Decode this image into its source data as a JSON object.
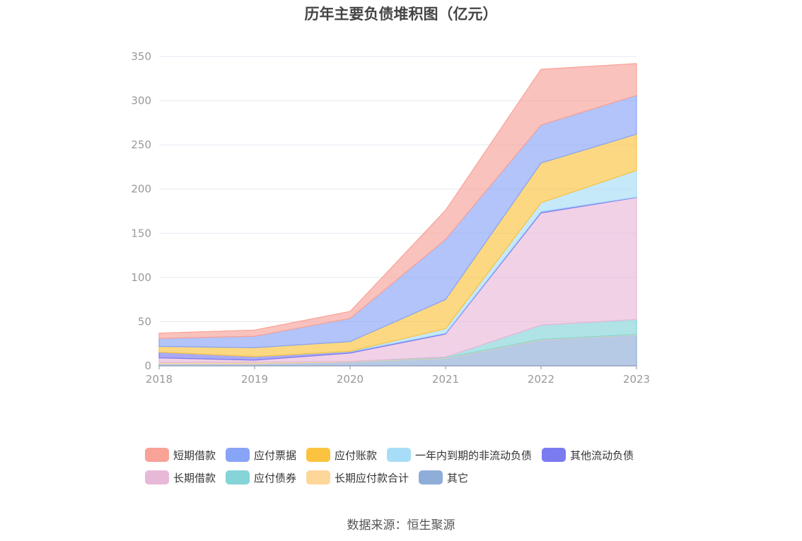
{
  "title": "历年主要负债堆积图（亿元）",
  "source": "数据来源：恒生聚源",
  "chart_data": {
    "type": "area",
    "stacked": true,
    "x": [
      "2018",
      "2019",
      "2020",
      "2021",
      "2022",
      "2023"
    ],
    "ylim": [
      0,
      350
    ],
    "yticks": [
      0,
      50,
      100,
      150,
      200,
      250,
      300,
      350
    ],
    "grid": true,
    "legend_position": "bottom",
    "series": [
      {
        "name": "其它",
        "color": "#8fadd9",
        "values": [
          2.5,
          2.5,
          4.5,
          8.5,
          29.5,
          35
        ]
      },
      {
        "name": "长期应付款合计",
        "color": "#fdd69a",
        "values": [
          1.5,
          1.5,
          0.5,
          0.5,
          0.5,
          0.5
        ]
      },
      {
        "name": "应付债券",
        "color": "#84d4d8",
        "values": [
          0,
          0,
          0,
          1,
          16,
          17
        ]
      },
      {
        "name": "长期借款",
        "color": "#e8b8d8",
        "values": [
          5,
          2.5,
          9.5,
          26,
          127,
          138
        ]
      },
      {
        "name": "其他流动负债",
        "color": "#7b7bf0",
        "values": [
          6.5,
          4,
          1.5,
          1,
          1.5,
          0.5
        ]
      },
      {
        "name": "一年内到期的非流动负债",
        "color": "#a8ddf8",
        "values": [
          0,
          0,
          0.5,
          5,
          10,
          30
        ]
      },
      {
        "name": "应付账款",
        "color": "#fbc33f",
        "values": [
          6.5,
          10,
          11,
          33,
          45,
          41
        ]
      },
      {
        "name": "应付票据",
        "color": "#88a4f7",
        "values": [
          9,
          13,
          26,
          68,
          43,
          44
        ]
      },
      {
        "name": "短期借款",
        "color": "#f8a298",
        "values": [
          6,
          7,
          8,
          33,
          63,
          36
        ]
      }
    ]
  },
  "legend_rows": [
    [
      {
        "label": "短期借款",
        "color": "#f8a298"
      },
      {
        "label": "应付票据",
        "color": "#88a4f7"
      },
      {
        "label": "应付账款",
        "color": "#fbc33f"
      },
      {
        "label": "一年内到期的非流动负债",
        "color": "#a8ddf8"
      },
      {
        "label": "其他流动负债",
        "color": "#7b7bf0"
      }
    ],
    [
      {
        "label": "长期借款",
        "color": "#e8b8d8"
      },
      {
        "label": "应付债券",
        "color": "#84d4d8"
      },
      {
        "label": "长期应付款合计",
        "color": "#fdd69a"
      },
      {
        "label": "其它",
        "color": "#8fadd9"
      }
    ]
  ]
}
